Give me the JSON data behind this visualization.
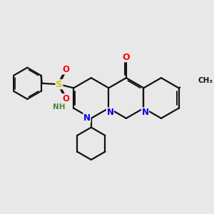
{
  "background_color": "#e8e8e8",
  "figsize": [
    3.0,
    3.0
  ],
  "dpi": 100,
  "atom_colors": {
    "N": "#0000ee",
    "O": "#ff0000",
    "S": "#cccc00",
    "C": "#111111",
    "H": "#448844"
  },
  "bond_color": "#111111",
  "bond_width": 1.6,
  "blen": 0.68
}
